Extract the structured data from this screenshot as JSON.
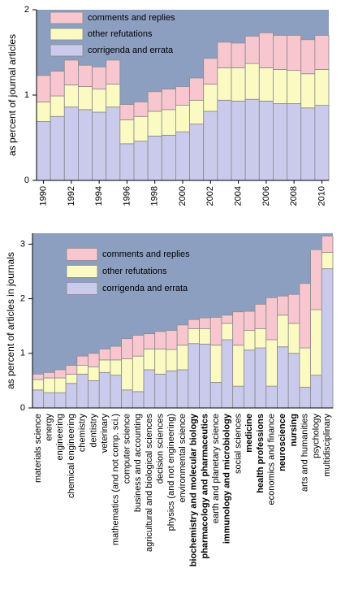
{
  "chart_data": [
    {
      "type": "stacked_bar",
      "y_label": "as percent of journal articles",
      "x": [
        1990,
        1991,
        1992,
        1993,
        1994,
        1995,
        1996,
        1997,
        1998,
        1999,
        2000,
        2001,
        2002,
        2003,
        2004,
        2005,
        2006,
        2007,
        2008,
        2009,
        2010
      ],
      "xlim": [
        1989.5,
        2010.5
      ],
      "xticks": [
        1990,
        1992,
        1994,
        1996,
        1998,
        2000,
        2002,
        2004,
        2006,
        2008,
        2010
      ],
      "ylim": [
        0,
        2
      ],
      "yticks": [
        0,
        1,
        2
      ],
      "legend": "upper left",
      "background": "#8d9fc0",
      "series": [
        {
          "name": "corrigenda and errata",
          "color": "#cacaec",
          "values": [
            0.69,
            0.75,
            0.86,
            0.83,
            0.8,
            0.86,
            0.43,
            0.46,
            0.52,
            0.53,
            0.57,
            0.66,
            0.81,
            0.94,
            0.93,
            0.95,
            0.93,
            0.9,
            0.9,
            0.85,
            0.88
          ]
        },
        {
          "name": "other refutations",
          "color": "#fafac2",
          "values": [
            0.23,
            0.24,
            0.26,
            0.27,
            0.27,
            0.27,
            0.28,
            0.29,
            0.29,
            0.3,
            0.31,
            0.28,
            0.32,
            0.38,
            0.39,
            0.42,
            0.39,
            0.4,
            0.39,
            0.4,
            0.42
          ]
        },
        {
          "name": "comments and replies",
          "color": "#f8c6cf",
          "values": [
            0.31,
            0.29,
            0.29,
            0.25,
            0.26,
            0.28,
            0.18,
            0.17,
            0.23,
            0.24,
            0.22,
            0.26,
            0.3,
            0.3,
            0.29,
            0.32,
            0.41,
            0.4,
            0.41,
            0.4,
            0.4
          ]
        }
      ]
    },
    {
      "type": "stacked_bar",
      "y_label": "as percent of articles in journals",
      "categories": [
        "materials science",
        "energy",
        "engineering",
        "chemical engineering",
        "chemistry",
        "dentistry",
        "veterinary",
        "mathematics (and not comp. sci.)",
        "computer science",
        "business and accounting",
        "agricultural and biological sciences",
        "decision sciences",
        "physics (and not engineering)",
        "environmental science",
        "biochemistry and molecular biology",
        "pharmacology and pharmaceutics",
        "earth and planetary science",
        "immunology and microbiology",
        "social sciences",
        "medicine",
        "health professions",
        "economics and finance",
        "neuroscience",
        "nursing",
        "arts and humanities",
        "psychology",
        "multidisciplinary"
      ],
      "bold": [
        false,
        false,
        false,
        false,
        false,
        false,
        false,
        false,
        false,
        false,
        false,
        false,
        false,
        false,
        true,
        true,
        false,
        true,
        false,
        true,
        true,
        false,
        true,
        true,
        false,
        false,
        false
      ],
      "ylim": [
        0,
        3.2
      ],
      "yticks": [
        0,
        1,
        2,
        3
      ],
      "legend": "upper left",
      "background": "#8d9fc0",
      "series": [
        {
          "name": "corrigenda and errata",
          "color": "#cacaec",
          "values": [
            0.33,
            0.28,
            0.28,
            0.45,
            0.62,
            0.5,
            0.65,
            0.6,
            0.33,
            0.3,
            0.7,
            0.62,
            0.68,
            0.7,
            1.18,
            1.17,
            0.47,
            1.25,
            0.4,
            1.06,
            1.1,
            0.4,
            1.12,
            1.0,
            0.38,
            0.6,
            2.55
          ]
        },
        {
          "name": "other refutations",
          "color": "#fafac2",
          "values": [
            0.19,
            0.27,
            0.27,
            0.17,
            0.16,
            0.25,
            0.23,
            0.28,
            0.57,
            0.65,
            0.38,
            0.46,
            0.39,
            0.45,
            0.27,
            0.28,
            0.68,
            0.3,
            0.75,
            0.36,
            0.35,
            0.85,
            0.58,
            0.55,
            0.72,
            1.2,
            0.3
          ]
        },
        {
          "name": "comments and replies",
          "color": "#f8c6cf",
          "values": [
            0.1,
            0.1,
            0.15,
            0.16,
            0.17,
            0.25,
            0.2,
            0.25,
            0.37,
            0.38,
            0.28,
            0.32,
            0.35,
            0.37,
            0.17,
            0.2,
            0.51,
            0.15,
            0.61,
            0.35,
            0.45,
            0.77,
            0.35,
            0.53,
            1.18,
            1.1,
            0.3
          ]
        }
      ]
    }
  ]
}
